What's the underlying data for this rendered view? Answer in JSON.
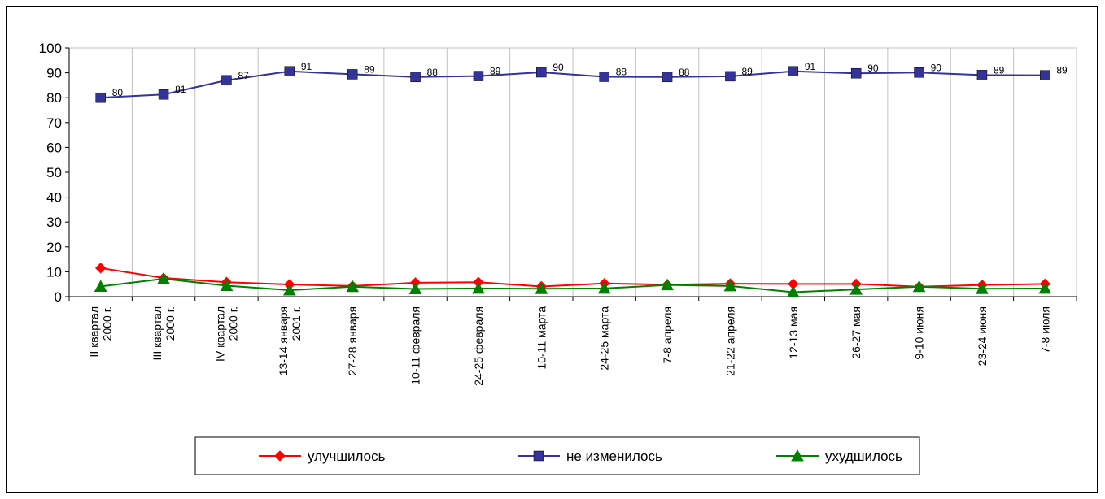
{
  "chart_data": {
    "type": "line",
    "categories": [
      [
        "II квартал",
        "2000 г."
      ],
      [
        "III квартал",
        "2000 г."
      ],
      [
        "IV квартал",
        "2000 г."
      ],
      [
        "13-14 января",
        "2001 г."
      ],
      [
        "27-28 января"
      ],
      [
        "10-11 февраля"
      ],
      [
        "24-25 февраля"
      ],
      [
        "10-11 марта"
      ],
      [
        "24-25 марта"
      ],
      [
        "7-8 апреля"
      ],
      [
        "21-22 апреля"
      ],
      [
        "12-13 мая"
      ],
      [
        "26-27 мая"
      ],
      [
        "9-10 июня"
      ],
      [
        "23-24 июня"
      ],
      [
        "7-8 июля"
      ]
    ],
    "series": [
      {
        "name": "улучшилось",
        "color": "#FF0000",
        "marker": "diamond",
        "values": [
          11.5,
          7.5,
          5.8,
          4.9,
          4.3,
          5.6,
          5.8,
          4.1,
          5.3,
          4.8,
          5.2,
          5.1,
          5.1,
          4.0,
          4.7,
          5.1
        ]
      },
      {
        "name": "не изменилось",
        "color": "#333399",
        "marker": "square",
        "values": [
          80,
          81.3,
          87,
          90.6,
          89.4,
          88.3,
          88.7,
          90.2,
          88.4,
          88.3,
          88.6,
          90.6,
          89.8,
          90.1,
          89.1,
          89.0
        ],
        "labels": [
          "80",
          "81",
          "87",
          "91",
          "89",
          "88",
          "89",
          "90",
          "88",
          "88",
          "89",
          "91",
          "90",
          "90",
          "89",
          "89"
        ]
      },
      {
        "name": "ухудшилось",
        "color": "#008000",
        "marker": "triangle",
        "values": [
          4.1,
          7.2,
          4.4,
          2.6,
          4.0,
          3.1,
          3.3,
          3.2,
          3.3,
          4.7,
          4.3,
          1.8,
          2.9,
          4.0,
          3.2,
          3.3
        ]
      }
    ],
    "ylim": [
      0,
      100
    ],
    "yticks": [
      "0",
      "10",
      "20",
      "30",
      "40",
      "50",
      "60",
      "70",
      "80",
      "90",
      "100"
    ],
    "grid": "vertical",
    "legend_position": "bottom"
  }
}
